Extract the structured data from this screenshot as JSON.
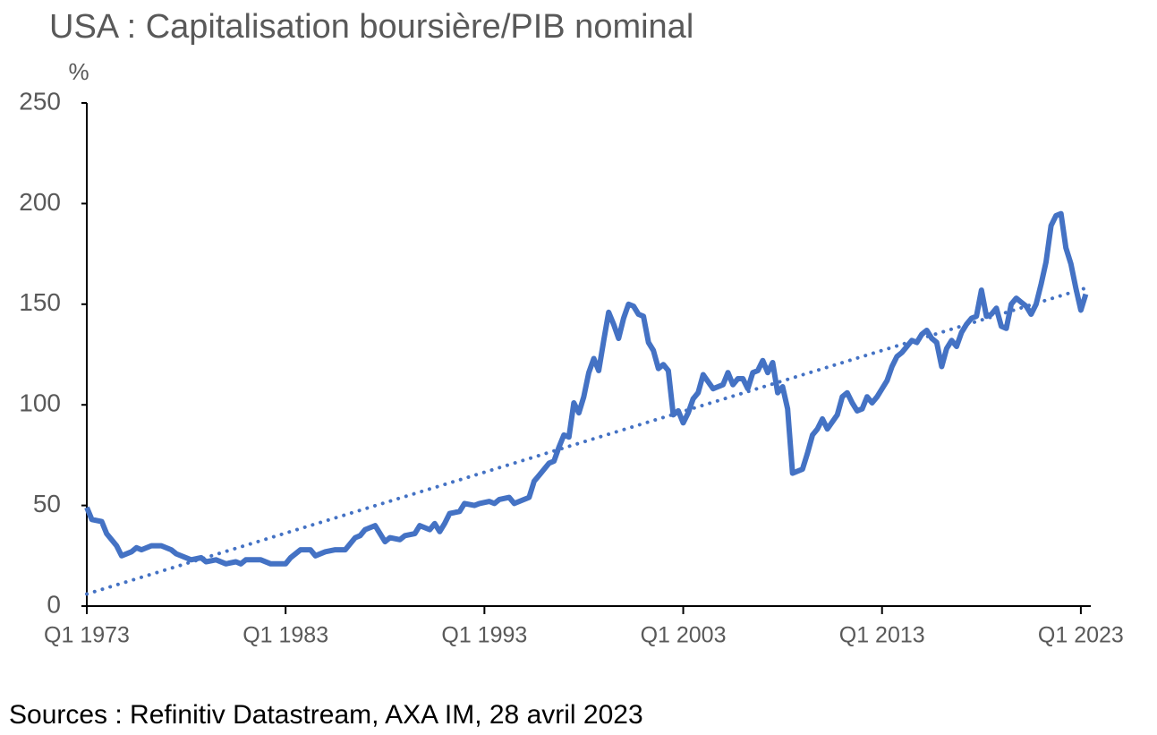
{
  "chart_data": {
    "type": "line",
    "title": "USA : Capitalisation boursière/PIB nominal",
    "y_unit": "%",
    "source": "Sources : Refinitiv Datastream, AXA IM, 28 avril 2023",
    "xlim": [
      1973,
      2023.5
    ],
    "xticks": [
      {
        "value": 1973,
        "label": "Q1 1973"
      },
      {
        "value": 1983,
        "label": "Q1 1983"
      },
      {
        "value": 1993,
        "label": "Q1 1993"
      },
      {
        "value": 2003,
        "label": "Q1 2003"
      },
      {
        "value": 2013,
        "label": "Q1 2013"
      },
      {
        "value": 2023,
        "label": "Q1 2023"
      }
    ],
    "ylim": [
      0,
      250
    ],
    "yticks": [
      0,
      50,
      100,
      150,
      200,
      250
    ],
    "series": [
      {
        "color": "#4472c4",
        "x": [
          1973,
          1973.25,
          1973.75,
          1974,
          1974.5,
          1974.75,
          1975.25,
          1975.5,
          1975.75,
          1976.25,
          1976.75,
          1977.25,
          1977.5,
          1978.25,
          1978.75,
          1979,
          1979.5,
          1980,
          1980.5,
          1980.75,
          1981,
          1981.75,
          1982.25,
          1982.5,
          1983,
          1983.25,
          1983.75,
          1984.25,
          1984.5,
          1985,
          1985.5,
          1986,
          1986.5,
          1986.75,
          1987,
          1987.5,
          1988,
          1988.25,
          1988.75,
          1989,
          1989.5,
          1989.75,
          1990.25,
          1990.5,
          1990.75,
          1991,
          1991.25,
          1991.75,
          1992,
          1992.5,
          1992.75,
          1993.25,
          1993.5,
          1993.75,
          1994.25,
          1994.5,
          1994.75,
          1995.25,
          1995.5,
          1995.75,
          1996.25,
          1996.5,
          1996.75,
          1997,
          1997.25,
          1997.5,
          1997.75,
          1998,
          1998.25,
          1998.5,
          1998.75,
          1999,
          1999.25,
          1999.5,
          1999.75,
          2000,
          2000.25,
          2000.5,
          2000.75,
          2001,
          2001.25,
          2001.5,
          2001.75,
          2002,
          2002.25,
          2002.5,
          2002.75,
          2003,
          2003.25,
          2003.5,
          2003.75,
          2004,
          2004.5,
          2004.75,
          2005,
          2005.25,
          2005.5,
          2005.75,
          2006,
          2006.25,
          2006.5,
          2006.75,
          2007,
          2007.25,
          2007.5,
          2007.75,
          2008,
          2008.25,
          2008.5,
          2009,
          2009.25,
          2009.5,
          2009.75,
          2010,
          2010.25,
          2010.75,
          2011,
          2011.25,
          2011.5,
          2011.75,
          2012,
          2012.25,
          2012.5,
          2012.75,
          2013.25,
          2013.5,
          2013.75,
          2014,
          2014.5,
          2014.75,
          2015,
          2015.25,
          2015.5,
          2015.75,
          2016,
          2016.25,
          2016.5,
          2016.75,
          2017,
          2017.25,
          2017.5,
          2017.75,
          2018,
          2018.25,
          2018.5,
          2018.75,
          2019,
          2019.25,
          2019.5,
          2019.75,
          2020,
          2020.25,
          2020.5,
          2020.75,
          2021,
          2021.25,
          2021.5,
          2021.75,
          2022,
          2022.25,
          2022.5,
          2022.75,
          2023,
          2023.25
        ],
        "values": [
          49,
          43,
          42,
          36,
          30,
          25,
          27,
          29,
          28,
          30,
          30,
          28,
          26,
          23,
          24,
          22,
          23,
          21,
          22,
          21,
          23,
          23,
          21,
          21,
          21,
          24,
          28,
          28,
          25,
          27,
          28,
          28,
          34,
          35,
          38,
          40,
          32,
          34,
          33,
          35,
          36,
          40,
          38,
          41,
          37,
          41,
          46,
          47,
          51,
          50,
          51,
          52,
          51,
          53,
          54,
          51,
          52,
          54,
          62,
          65,
          71,
          72,
          79,
          85,
          84,
          101,
          96,
          104,
          116,
          123,
          117,
          132,
          146,
          140,
          133,
          143,
          150,
          149,
          145,
          144,
          131,
          127,
          118,
          120,
          117,
          95,
          97,
          91,
          96,
          103,
          106,
          115,
          108,
          109,
          110,
          116,
          110,
          113,
          113,
          108,
          116,
          117,
          122,
          116,
          121,
          106,
          109,
          98,
          66,
          68,
          76,
          85,
          88,
          93,
          88,
          95,
          104,
          106,
          101,
          97,
          98,
          104,
          101,
          104,
          112,
          119,
          124,
          126,
          132,
          131,
          135,
          137,
          133,
          131,
          119,
          128,
          132,
          129,
          136,
          140,
          143,
          144,
          157,
          144,
          145,
          148,
          139,
          138,
          150,
          153,
          151,
          149,
          145,
          150,
          160,
          171,
          189,
          194,
          195,
          178,
          170,
          158,
          147,
          155
        ]
      }
    ],
    "trend": {
      "color": "#4472c4",
      "x": [
        1973,
        2023.25
      ],
      "values": [
        6,
        158
      ]
    }
  }
}
